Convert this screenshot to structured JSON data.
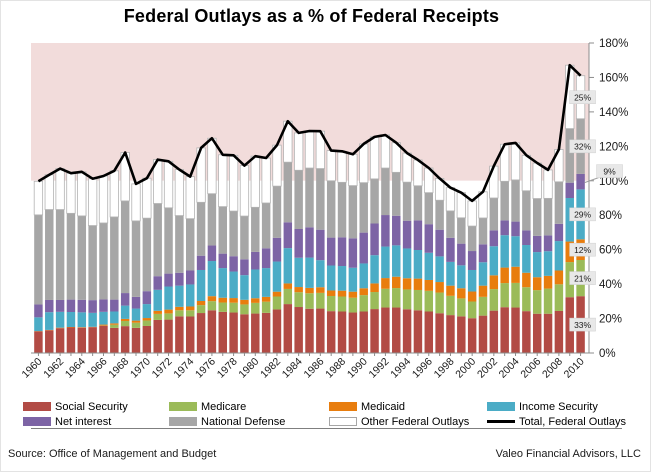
{
  "title": "Federal Outlays as a % of Federal Receipts",
  "footer": {
    "source": "Source: Office of Management and Budget",
    "brand": "Valeo Financial Advisors, LLC"
  },
  "legend": {
    "items": [
      {
        "label": "Social Security",
        "swatch": "rect",
        "color": "#b24b45"
      },
      {
        "label": "Medicare",
        "swatch": "rect",
        "color": "#9bbb59"
      },
      {
        "label": "Medicaid",
        "swatch": "rect",
        "color": "#e87d0e"
      },
      {
        "label": "Income Security",
        "swatch": "rect",
        "color": "#4bacc6"
      },
      {
        "label": "Net interest",
        "swatch": "rect",
        "color": "#7d64a5"
      },
      {
        "label": "National Defense",
        "swatch": "rect",
        "color": "#a6a6a6"
      },
      {
        "label": "Other Federal Outlays",
        "swatch": "rect",
        "color": "#ffffff",
        "border": "#a6a6a6"
      },
      {
        "label": "Total, Federal Outlays",
        "swatch": "line",
        "color": "#000000"
      }
    ]
  },
  "chart_data": {
    "type": "bar",
    "subtype": "stacked-bars-with-total-line",
    "title": "Federal Outlays as a % of Federal Receipts",
    "units": "% of federal receipts",
    "grid": false,
    "legend_position": "bottom",
    "ylim": [
      0,
      180
    ],
    "y_ticks": [
      "0%",
      "20%",
      "40%",
      "60%",
      "80%",
      "100%",
      "120%",
      "140%",
      "160%",
      "180%"
    ],
    "x": [
      1960,
      1961,
      1962,
      1963,
      1964,
      1965,
      1966,
      1967,
      1968,
      1969,
      1970,
      1971,
      1972,
      1973,
      1974,
      1975,
      1976,
      1977,
      1978,
      1979,
      1980,
      1981,
      1982,
      1983,
      1984,
      1985,
      1986,
      1987,
      1988,
      1989,
      1990,
      1991,
      1992,
      1993,
      1994,
      1995,
      1996,
      1997,
      1998,
      1999,
      2000,
      2001,
      2002,
      2003,
      2004,
      2005,
      2006,
      2007,
      2008,
      2009,
      2010
    ],
    "x_tick_labels": [
      "1960",
      "1962",
      "1964",
      "1966",
      "1968",
      "1970",
      "1972",
      "1974",
      "1976",
      "1978",
      "1980",
      "1982",
      "1984",
      "1986",
      "1988",
      "1990",
      "1992",
      "1994",
      "1996",
      "1998",
      "2000",
      "2002",
      "2004",
      "2006",
      "2008",
      "2010"
    ],
    "plot_bg": {
      "above_100": "#f2dcdb",
      "below_100": "#ffffff"
    },
    "series": [
      {
        "name": "Social Security",
        "color": "#b24b45",
        "values": [
          12.5,
          13.2,
          14.4,
          14.8,
          14.7,
          15,
          15.8,
          14.6,
          15.6,
          14.6,
          15.7,
          19.2,
          19.4,
          21.3,
          21.2,
          23.2,
          24.8,
          23.9,
          23.5,
          22.5,
          22.9,
          23.3,
          25.3,
          28.4,
          26.7,
          25.7,
          25.8,
          24.3,
          24.1,
          23.5,
          24.1,
          25.5,
          26.4,
          26.4,
          25.4,
          24.8,
          24.1,
          23.1,
          22,
          21.3,
          20.2,
          21.7,
          24.6,
          26.6,
          26.4,
          24.3,
          22.8,
          22.8,
          24.4,
          32.4,
          33
        ]
      },
      {
        "name": "Medicare",
        "color": "#9bbb59",
        "values": [
          0,
          0,
          0,
          0,
          0,
          0,
          0.1,
          1.8,
          3,
          3,
          3.2,
          3.5,
          3.6,
          3.5,
          3.6,
          4.6,
          5.3,
          5.4,
          5.7,
          5.7,
          6.2,
          6.5,
          7.5,
          8.8,
          8.6,
          9,
          9.1,
          8.8,
          8.7,
          8.6,
          9.5,
          9.9,
          10.9,
          11.3,
          11.5,
          11.8,
          12,
          12,
          11.2,
          10.4,
          9.7,
          10.9,
          12.5,
          14,
          14.3,
          13.9,
          13.7,
          14.6,
          15.5,
          20.4,
          21
        ]
      },
      {
        "name": "Medicaid",
        "color": "#e87d0e",
        "values": [
          0.2,
          0.2,
          0.3,
          0.3,
          0.3,
          0.2,
          0.6,
          0.8,
          1.2,
          1.2,
          1.4,
          1.8,
          2.2,
          2,
          2.2,
          2.4,
          2.9,
          2.8,
          2.7,
          2.7,
          2.7,
          2.8,
          2.8,
          3.2,
          3,
          3.1,
          3.3,
          3.2,
          3.4,
          3.5,
          4,
          5,
          6.2,
          6.6,
          6.5,
          6.6,
          6.3,
          6.1,
          5.9,
          5.9,
          5.8,
          6.5,
          8,
          9,
          9.4,
          8.4,
          7.5,
          7.4,
          8,
          11.9,
          12
        ]
      },
      {
        "name": "Income Security",
        "color": "#4bacc6",
        "values": [
          8,
          10.3,
          9.2,
          8.7,
          8.6,
          8.1,
          7.4,
          6.9,
          7.7,
          7,
          8.1,
          12.2,
          13.4,
          12.3,
          12.8,
          18,
          20.4,
          17.2,
          15.4,
          14.3,
          16.7,
          16.7,
          17.5,
          20.5,
          17,
          17.6,
          15.7,
          14.5,
          14.3,
          13.9,
          14.4,
          16.4,
          18.3,
          18.2,
          17.3,
          16.6,
          15.8,
          14.9,
          13.8,
          13.3,
          12.5,
          13.6,
          16.9,
          18.8,
          17.7,
          16.1,
          14.6,
          14.3,
          17.1,
          25.3,
          29
        ]
      },
      {
        "name": "Net interest",
        "color": "#7d64a5",
        "values": [
          7.5,
          7.1,
          6.9,
          7.2,
          7.3,
          7.4,
          7.2,
          6.9,
          7.3,
          6.8,
          7.5,
          7.9,
          7.5,
          7.5,
          8.1,
          8.3,
          9,
          8.4,
          8.9,
          9.2,
          10.2,
          11.5,
          13.8,
          15,
          16.7,
          17.6,
          17.7,
          16.2,
          16.7,
          17.1,
          17.9,
          18.4,
          18.3,
          17.2,
          16.1,
          17.2,
          16.6,
          15.5,
          14,
          12.6,
          11,
          10.4,
          9.2,
          8.6,
          8.5,
          8.5,
          9.4,
          9.2,
          10,
          8.9,
          9
        ]
      },
      {
        "name": "National Defense",
        "color": "#a6a6a6",
        "values": [
          52,
          52.5,
          52.5,
          50.1,
          48.7,
          43.3,
          44.4,
          48,
          53.5,
          44.1,
          42.4,
          42.2,
          38.2,
          33.2,
          30.1,
          31,
          30.1,
          27.3,
          26.2,
          25.1,
          25.9,
          26.3,
          30,
          34.9,
          34.1,
          34.4,
          35.5,
          33,
          31.9,
          30.6,
          29,
          25.9,
          27.3,
          25.2,
          22.4,
          20.1,
          18.3,
          17.1,
          15.6,
          15,
          14.5,
          15.3,
          18.8,
          22.7,
          24.2,
          23,
          21.7,
          21.5,
          24.4,
          31.4,
          32
        ]
      },
      {
        "name": "Other Federal Outlays",
        "color": "#ffffff",
        "outline": "#b3b3b3",
        "values": [
          19.5,
          20.2,
          23.8,
          23.3,
          25.6,
          27.2,
          27.3,
          26.8,
          28.1,
          21.5,
          23.2,
          25.5,
          27,
          26.7,
          24.4,
          31.6,
          32.2,
          30.1,
          32.4,
          29.3,
          29.7,
          26.1,
          23.8,
          23.8,
          21.7,
          21.5,
          21.7,
          17.5,
          18,
          18.2,
          22.5,
          24.4,
          19.2,
          17.2,
          16.9,
          15,
          14.3,
          12.7,
          13.5,
          14.6,
          14.6,
          15.2,
          18.5,
          21.5,
          21.5,
          20.6,
          20.6,
          16.5,
          18.8,
          36.8,
          25
        ]
      }
    ],
    "line_series": {
      "name": "Total, Federal Outlays",
      "color": "#000000",
      "values": [
        99.7,
        103.5,
        107.1,
        104.4,
        105.2,
        101.2,
        102.8,
        105.8,
        116.4,
        98.2,
        101.5,
        112.3,
        111.3,
        106.5,
        102.4,
        119.1,
        124.7,
        115.1,
        114.8,
        108.8,
        114.3,
        113.2,
        120.7,
        134.6,
        127.8,
        128.9,
        128.8,
        117.5,
        117.1,
        115.4,
        121.4,
        125.5,
        126.6,
        122.1,
        116.1,
        112.1,
        107.4,
        101.4,
        96,
        93.1,
        88.3,
        93.6,
        108.5,
        121.2,
        122,
        114.8,
        110.3,
        106.3,
        118.2,
        167.1,
        161
      ]
    },
    "callouts": [
      {
        "text": "33%",
        "at": 16.5,
        "segment": "Social Security"
      },
      {
        "text": "21%",
        "at": 43.5,
        "segment": "Medicare"
      },
      {
        "text": "12%",
        "at": 60,
        "segment": "Medicaid"
      },
      {
        "text": "29%",
        "at": 80.5,
        "segment": "Income Security"
      },
      {
        "text": "9%",
        "at": 99.5,
        "segment": "Net interest",
        "offset": true
      },
      {
        "text": "32%",
        "at": 120,
        "segment": "National Defense"
      },
      {
        "text": "25%",
        "at": 148.5,
        "segment": "Other Federal Outlays"
      }
    ]
  }
}
